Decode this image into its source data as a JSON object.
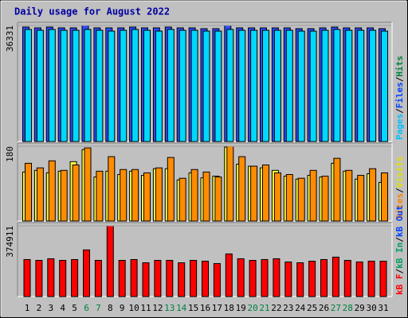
{
  "title": "Daily usage for August 2022",
  "legend_separator": "/",
  "categories": [
    "1",
    "2",
    "3",
    "4",
    "5",
    "6",
    "7",
    "8",
    "9",
    "10",
    "11",
    "12",
    "13",
    "14",
    "15",
    "16",
    "17",
    "18",
    "19",
    "20",
    "21",
    "22",
    "23",
    "24",
    "25",
    "26",
    "27",
    "28",
    "29",
    "30",
    "31"
  ],
  "category_colors": [
    "#000000",
    "#000000",
    "#000000",
    "#000000",
    "#000000",
    "#008040",
    "#008040",
    "#000000",
    "#000000",
    "#000000",
    "#000000",
    "#000000",
    "#008040",
    "#008040",
    "#000000",
    "#000000",
    "#000000",
    "#000000",
    "#000000",
    "#008040",
    "#008040",
    "#000000",
    "#000000",
    "#000000",
    "#000000",
    "#000000",
    "#008040",
    "#008040",
    "#000000",
    "#000000",
    "#000000"
  ],
  "chart_data": [
    {
      "type": "bar",
      "ylim": [
        0,
        36331
      ],
      "yticks": [
        36331
      ],
      "legend": [
        {
          "name": "Pages",
          "color": "#00c0ff"
        },
        {
          "name": "Files",
          "color": "#0040ff"
        },
        {
          "name": "Hits",
          "color": "#008040"
        }
      ],
      "series": [
        {
          "color": "#2b4cff",
          "values": [
            35830,
            35580,
            35830,
            35580,
            35580,
            36331,
            35580,
            35580,
            35580,
            35830,
            35580,
            35580,
            35830,
            35580,
            35580,
            35330,
            35330,
            36331,
            35580,
            35580,
            35580,
            35580,
            35580,
            35330,
            35330,
            35580,
            35830,
            35580,
            35580,
            35580,
            35330
          ]
        },
        {
          "color": "#00d8ff",
          "values": [
            35070,
            34820,
            35070,
            34820,
            34820,
            35070,
            34820,
            34570,
            34820,
            35070,
            34820,
            34570,
            35070,
            34820,
            34820,
            34570,
            34570,
            35070,
            34820,
            34820,
            34820,
            34820,
            34820,
            34570,
            34570,
            34820,
            35070,
            34820,
            34820,
            34820,
            34570
          ]
        }
      ]
    },
    {
      "type": "bar",
      "ylim": [
        0,
        180
      ],
      "yticks": [
        180
      ],
      "legend": [
        {
          "name": "Sites",
          "color": "#ff8000"
        },
        {
          "name": "Visits",
          "color": "#e0e000"
        }
      ],
      "series": [
        {
          "color": "#ffff40",
          "values": [
            118,
            122,
            116,
            120,
            143,
            172,
            106,
            120,
            112,
            120,
            110,
            126,
            126,
            99,
            116,
            104,
            108,
            178,
            137,
            132,
            128,
            122,
            108,
            101,
            110,
            106,
            139,
            120,
            101,
            114,
            93
          ]
        },
        {
          "color": "#ff8c00",
          "values": [
            139,
            128,
            145,
            122,
            135,
            176,
            120,
            155,
            124,
            124,
            116,
            128,
            153,
            103,
            124,
            118,
            106,
            180,
            155,
            132,
            135,
            116,
            112,
            103,
            122,
            108,
            151,
            122,
            110,
            126,
            116
          ]
        }
      ]
    },
    {
      "type": "bar",
      "ylim": [
        0,
        374911
      ],
      "yticks": [
        374911
      ],
      "legend": [
        {
          "name": "kB F",
          "color": "#ff0000"
        },
        {
          "name": "kB In",
          "color": "#00a060"
        },
        {
          "name": "kB Out",
          "color": "#0040ff"
        }
      ],
      "series": [
        {
          "color": "#ff0000",
          "values": [
            196000,
            191700,
            200200,
            191700,
            196000,
            247100,
            191700,
            374911,
            191700,
            196000,
            178900,
            191700,
            191700,
            178900,
            191700,
            187400,
            174700,
            225800,
            200200,
            191700,
            196000,
            200200,
            183200,
            178900,
            187400,
            196000,
            208800,
            191700,
            183200,
            187400,
            187400
          ]
        }
      ]
    }
  ]
}
